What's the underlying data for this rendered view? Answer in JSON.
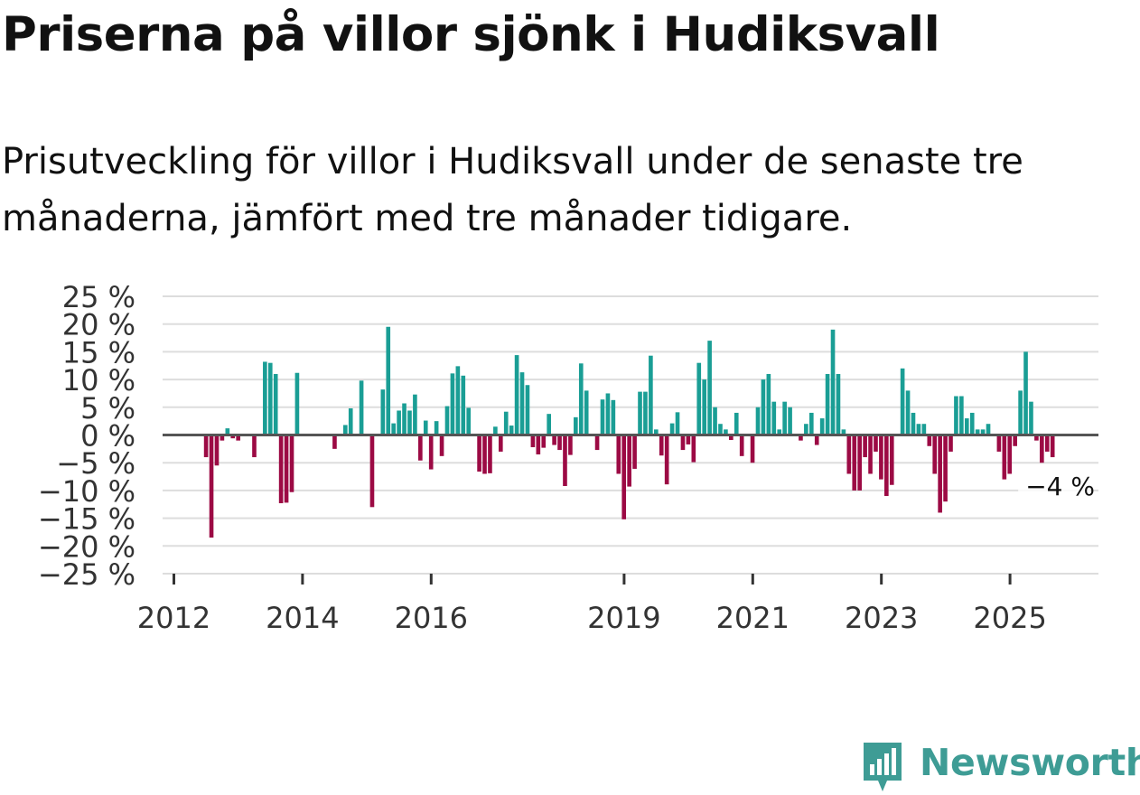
{
  "title": "Priserna på villor sjönk i Hudiksvall",
  "subtitle": "Prisutveckling för villor i Hudiksvall under de senaste tre månaderna, jämfört med tre månader tidigare.",
  "brand": {
    "name": "Newsworthy",
    "icon": "newsworthy-logo-icon"
  },
  "colors": {
    "positive": "#1a9e95",
    "negative": "#9c0a44",
    "grid": "#dddddd",
    "zero": "#555555"
  },
  "chart_data": {
    "type": "bar",
    "title": "",
    "xlabel": "",
    "ylabel": "",
    "ylim": [
      -25,
      25
    ],
    "y_ticks": [
      25,
      20,
      15,
      10,
      5,
      0,
      -5,
      -10,
      -15,
      -20,
      -25
    ],
    "y_tick_labels": [
      "25 %",
      "20 %",
      "15 %",
      "10 %",
      "5 %",
      "0 %",
      "−5 %",
      "−10 %",
      "−15 %",
      "−20 %",
      "−25 %"
    ],
    "x_ticks": [
      2012,
      2014,
      2016,
      2019,
      2021,
      2023,
      2025
    ],
    "x_tick_labels": [
      "2012",
      "2014",
      "2016",
      "2019",
      "2021",
      "2023",
      "2025"
    ],
    "x_start": 2012.5,
    "step": 0.0833,
    "annotation": {
      "label": "−4 %",
      "value": -4
    },
    "values": [
      -4,
      -18.5,
      -5.5,
      -1,
      1.2,
      -0.6,
      -1,
      0,
      0,
      -4,
      0,
      13.2,
      13,
      11,
      -12.3,
      -12.2,
      -10.3,
      11.2,
      0,
      0,
      0,
      0,
      0,
      0,
      -2.5,
      0,
      1.8,
      4.8,
      0,
      9.8,
      0,
      -13,
      0,
      8.2,
      19.5,
      2.1,
      4.4,
      5.7,
      4.4,
      7.3,
      -4.6,
      2.6,
      -6.2,
      2.5,
      -3.8,
      5.2,
      11.1,
      12.4,
      10.7,
      4.9,
      0,
      -6.6,
      -7,
      -6.9,
      1.5,
      -3,
      4.2,
      1.7,
      14.4,
      11.3,
      9,
      -2.2,
      -3.5,
      -2.3,
      3.8,
      -1.8,
      -2.7,
      -9.2,
      -3.6,
      3.2,
      12.9,
      8,
      0,
      -2.7,
      6.4,
      7.5,
      6.3,
      -7,
      -15.2,
      -9.3,
      -6.1,
      7.8,
      7.8,
      14.3,
      1,
      -3.7,
      -8.9,
      2.1,
      4.1,
      -2.7,
      -1.7,
      -4.9,
      13,
      10,
      17,
      5,
      2,
      1,
      -0.9,
      4,
      -3.8,
      0,
      -5,
      5,
      10,
      11,
      6,
      1,
      6,
      5,
      0,
      -1,
      2,
      4,
      -1.8,
      3,
      11,
      19,
      11,
      1,
      -7,
      -10,
      -10,
      -4,
      -7,
      -3,
      -8,
      -11,
      -9,
      0,
      12,
      8,
      4,
      2,
      2,
      -2,
      -7,
      -14,
      -12,
      -3,
      7,
      7,
      3,
      4,
      1,
      1,
      2,
      0,
      -3,
      -8,
      -7,
      -2,
      8,
      15,
      6,
      -1,
      -5,
      -3,
      -4
    ]
  }
}
